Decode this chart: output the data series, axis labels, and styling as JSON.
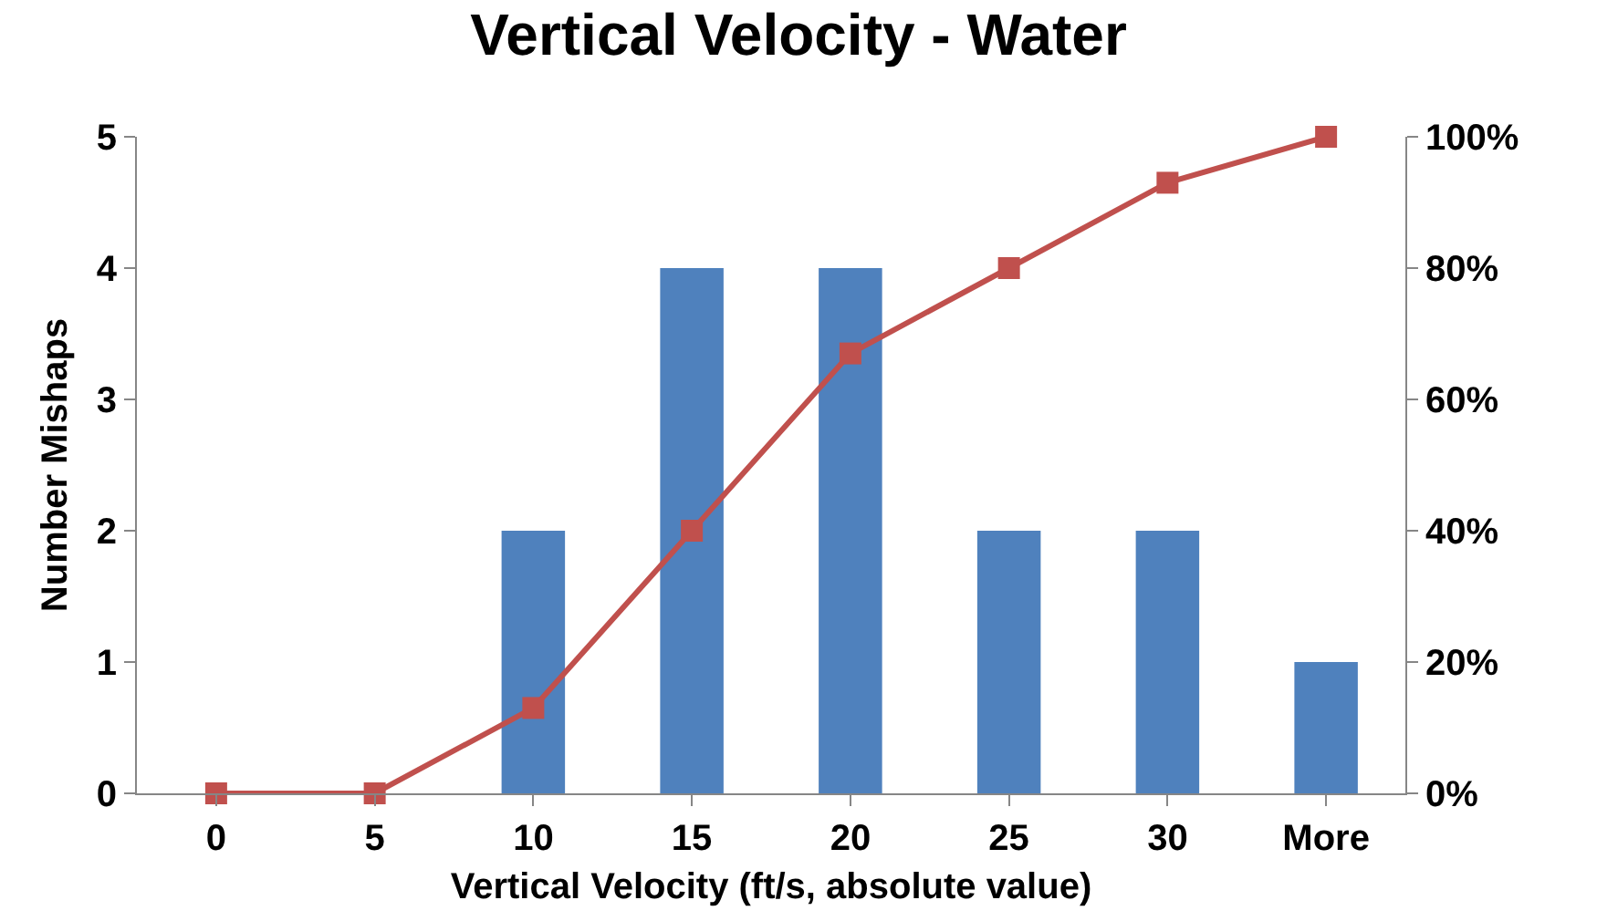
{
  "chart_data": {
    "type": "bar",
    "title": "Vertical Velocity - Water",
    "xlabel": "Vertical Velocity (ft/s, absolute value)",
    "ylabel": "Number Mishaps",
    "categories": [
      "0",
      "5",
      "10",
      "15",
      "20",
      "25",
      "30",
      "More"
    ],
    "series": [
      {
        "color": "#4f81bd",
        "values": [
          0,
          0,
          2,
          4,
          4,
          2,
          2,
          1
        ]
      },
      {
        "type": "line",
        "axis": "y2",
        "color": "#c0504d",
        "marker": "square",
        "values": [
          0,
          0,
          13,
          40,
          67,
          80,
          93,
          100
        ]
      }
    ],
    "ylim": [
      0,
      5
    ],
    "yticks": [
      0,
      1,
      2,
      3,
      4,
      5
    ],
    "y2lim": [
      0,
      100
    ],
    "y2ticks": [
      {
        "value": 0,
        "label": "0%"
      },
      {
        "value": 20,
        "label": "20%"
      },
      {
        "value": 40,
        "label": "40%"
      },
      {
        "value": 60,
        "label": "60%"
      },
      {
        "value": 80,
        "label": "80%"
      },
      {
        "value": 100,
        "label": "100%"
      }
    ]
  }
}
